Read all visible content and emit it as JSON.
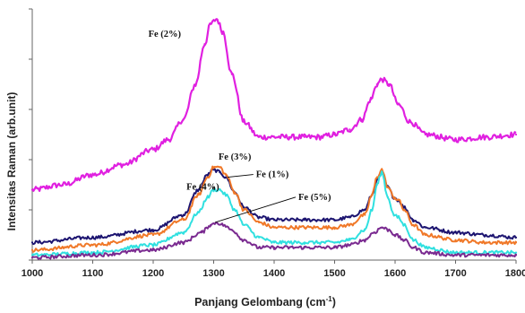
{
  "chart_data": {
    "type": "line",
    "title": "",
    "xlabel": "Panjang Gelombang (cm",
    "xlabel_sup": "-1",
    "xlabel_tail": ")",
    "ylabel": "Intensitas Raman (arb.unit)",
    "xlim": [
      1000,
      1800
    ],
    "ylim": [
      0,
      1
    ],
    "x_ticks": [
      "1000",
      "1100",
      "1200",
      "1300",
      "1400",
      "1500",
      "1600",
      "1700",
      "1800"
    ],
    "grid": false,
    "legend": "inline labels with leader lines",
    "series": [
      {
        "name": "Fe (2%)",
        "color": "#e020e0",
        "x": [
          1000,
          1050,
          1100,
          1150,
          1200,
          1225,
          1250,
          1270,
          1285,
          1295,
          1305,
          1315,
          1330,
          1350,
          1375,
          1400,
          1425,
          1450,
          1475,
          1500,
          1525,
          1545,
          1560,
          1570,
          1578,
          1590,
          1605,
          1625,
          1650,
          1700,
          1750,
          1800
        ],
        "y": [
          0.28,
          0.3,
          0.34,
          0.38,
          0.44,
          0.48,
          0.56,
          0.7,
          0.86,
          0.94,
          0.96,
          0.91,
          0.74,
          0.55,
          0.49,
          0.49,
          0.49,
          0.49,
          0.49,
          0.5,
          0.52,
          0.56,
          0.64,
          0.7,
          0.72,
          0.7,
          0.62,
          0.55,
          0.5,
          0.48,
          0.49,
          0.5
        ]
      },
      {
        "name": "Fe (3%)",
        "color": "#1c1470",
        "x": [
          1000,
          1100,
          1200,
          1250,
          1275,
          1290,
          1300,
          1310,
          1320,
          1335,
          1350,
          1375,
          1400,
          1450,
          1500,
          1525,
          1550,
          1562,
          1570,
          1578,
          1588,
          1598,
          1605,
          1615,
          1630,
          1650,
          1700,
          1750,
          1800
        ],
        "y": [
          0.07,
          0.09,
          0.12,
          0.18,
          0.28,
          0.34,
          0.36,
          0.35,
          0.33,
          0.27,
          0.21,
          0.17,
          0.16,
          0.16,
          0.16,
          0.17,
          0.2,
          0.26,
          0.32,
          0.35,
          0.29,
          0.25,
          0.24,
          0.21,
          0.16,
          0.13,
          0.11,
          0.1,
          0.09
        ]
      },
      {
        "name": "Fe (1%)",
        "color": "#f07828",
        "x": [
          1000,
          1100,
          1200,
          1250,
          1275,
          1290,
          1300,
          1310,
          1320,
          1335,
          1350,
          1375,
          1400,
          1450,
          1500,
          1525,
          1550,
          1562,
          1570,
          1578,
          1588,
          1598,
          1605,
          1615,
          1630,
          1650,
          1700,
          1750,
          1800
        ],
        "y": [
          0.04,
          0.06,
          0.1,
          0.16,
          0.26,
          0.33,
          0.37,
          0.37,
          0.34,
          0.27,
          0.2,
          0.15,
          0.13,
          0.13,
          0.13,
          0.14,
          0.18,
          0.26,
          0.33,
          0.36,
          0.29,
          0.25,
          0.24,
          0.2,
          0.14,
          0.1,
          0.08,
          0.07,
          0.07
        ]
      },
      {
        "name": "Fe (4%)",
        "color": "#30e0e0",
        "x": [
          1000,
          1100,
          1200,
          1250,
          1275,
          1290,
          1300,
          1310,
          1320,
          1335,
          1350,
          1375,
          1400,
          1450,
          1500,
          1525,
          1550,
          1562,
          1570,
          1578,
          1588,
          1598,
          1605,
          1615,
          1630,
          1650,
          1700,
          1750,
          1800
        ],
        "y": [
          0.02,
          0.03,
          0.06,
          0.11,
          0.19,
          0.25,
          0.28,
          0.28,
          0.26,
          0.2,
          0.14,
          0.09,
          0.07,
          0.07,
          0.07,
          0.08,
          0.12,
          0.2,
          0.3,
          0.35,
          0.25,
          0.18,
          0.17,
          0.14,
          0.08,
          0.05,
          0.03,
          0.03,
          0.03
        ]
      },
      {
        "name": "Fe (5%)",
        "color": "#7a2a90",
        "x": [
          1000,
          1100,
          1200,
          1250,
          1280,
          1295,
          1305,
          1315,
          1330,
          1350,
          1375,
          1400,
          1450,
          1500,
          1525,
          1550,
          1565,
          1578,
          1590,
          1600,
          1615,
          1630,
          1650,
          1700,
          1750,
          1800
        ],
        "y": [
          0.01,
          0.02,
          0.04,
          0.07,
          0.11,
          0.14,
          0.15,
          0.14,
          0.12,
          0.08,
          0.05,
          0.05,
          0.05,
          0.05,
          0.06,
          0.08,
          0.11,
          0.13,
          0.12,
          0.1,
          0.08,
          0.05,
          0.03,
          0.02,
          0.02,
          0.02
        ]
      }
    ],
    "annotations": [
      {
        "text": "Fe (2%)",
        "series": "Fe (2%)",
        "x": 1192,
        "y": 0.89
      },
      {
        "text": "Fe (3%)",
        "series": "Fe (3%)",
        "x": 1308,
        "y": 0.4
      },
      {
        "text": "Fe (1%)",
        "series": "Fe (1%)",
        "x": 1370,
        "y": 0.33,
        "leader_to": [
          1323,
          0.33
        ]
      },
      {
        "text": "Fe (4%)",
        "series": "Fe (4%)",
        "x": 1255,
        "y": 0.28,
        "leader_to": [
          1302,
          0.28
        ]
      },
      {
        "text": "Fe (5%)",
        "series": "Fe (5%)",
        "x": 1440,
        "y": 0.24,
        "leader_to": [
          1302,
          0.15
        ]
      }
    ]
  }
}
